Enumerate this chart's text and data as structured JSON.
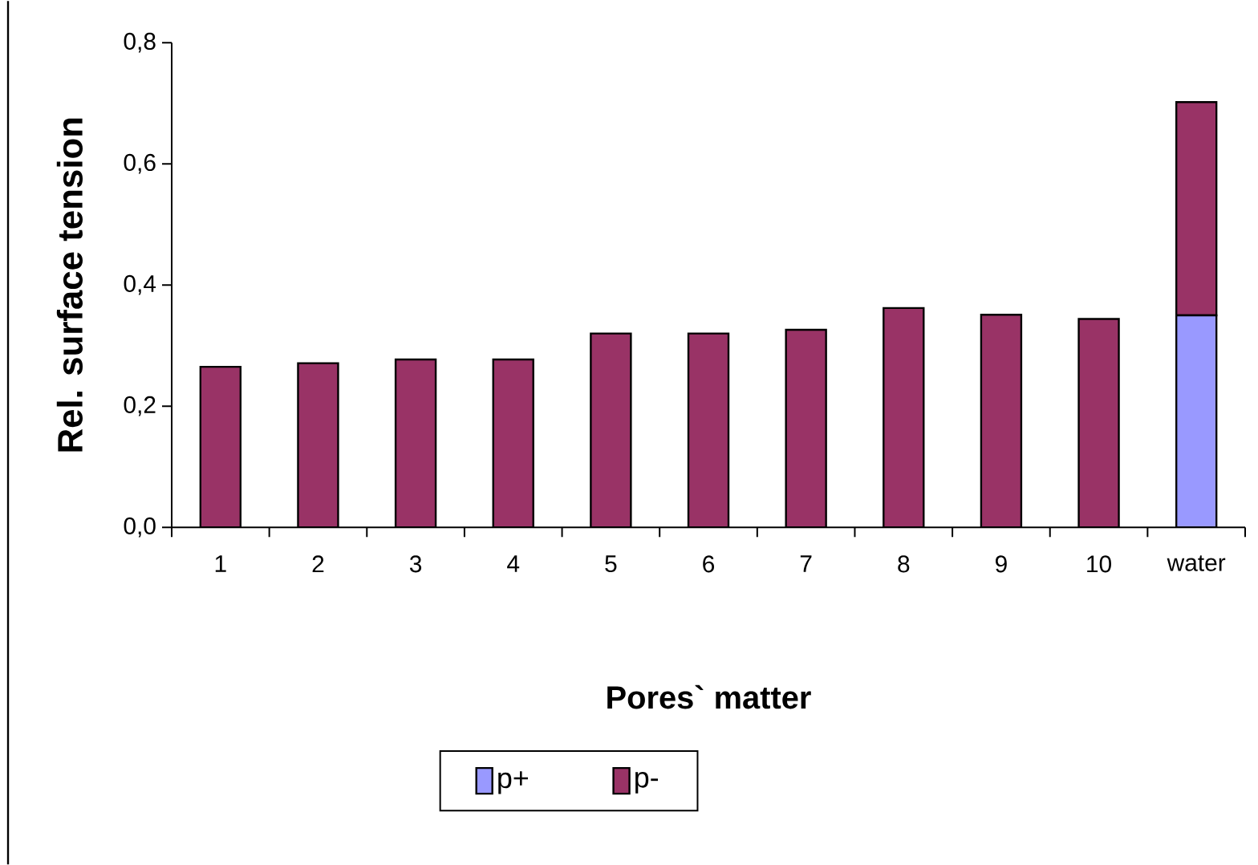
{
  "chart_data": {
    "type": "bar",
    "stacked": true,
    "xlabel": "Pores` matter",
    "ylabel": "Rel. surface tension",
    "categories": [
      "1",
      "2",
      "3",
      "4",
      "5",
      "6",
      "7",
      "8",
      "9",
      "10",
      "water"
    ],
    "series": [
      {
        "name": "p+",
        "color": "#9999ff",
        "values": [
          0,
          0,
          0,
          0,
          0,
          0,
          0,
          0,
          0,
          0,
          0.35
        ]
      },
      {
        "name": "p-",
        "color": "#993366",
        "values": [
          0.265,
          0.271,
          0.277,
          0.277,
          0.32,
          0.32,
          0.326,
          0.362,
          0.351,
          0.344,
          0.352
        ]
      }
    ],
    "ylim": [
      0,
      0.8
    ],
    "yticks": [
      {
        "value": 0,
        "label": "0,0"
      },
      {
        "value": 0.2,
        "label": "0,2"
      },
      {
        "value": 0.4,
        "label": "0,4"
      },
      {
        "value": 0.6,
        "label": "0,6"
      },
      {
        "value": 0.8,
        "label": "0,8"
      }
    ],
    "legend": "bottom"
  }
}
